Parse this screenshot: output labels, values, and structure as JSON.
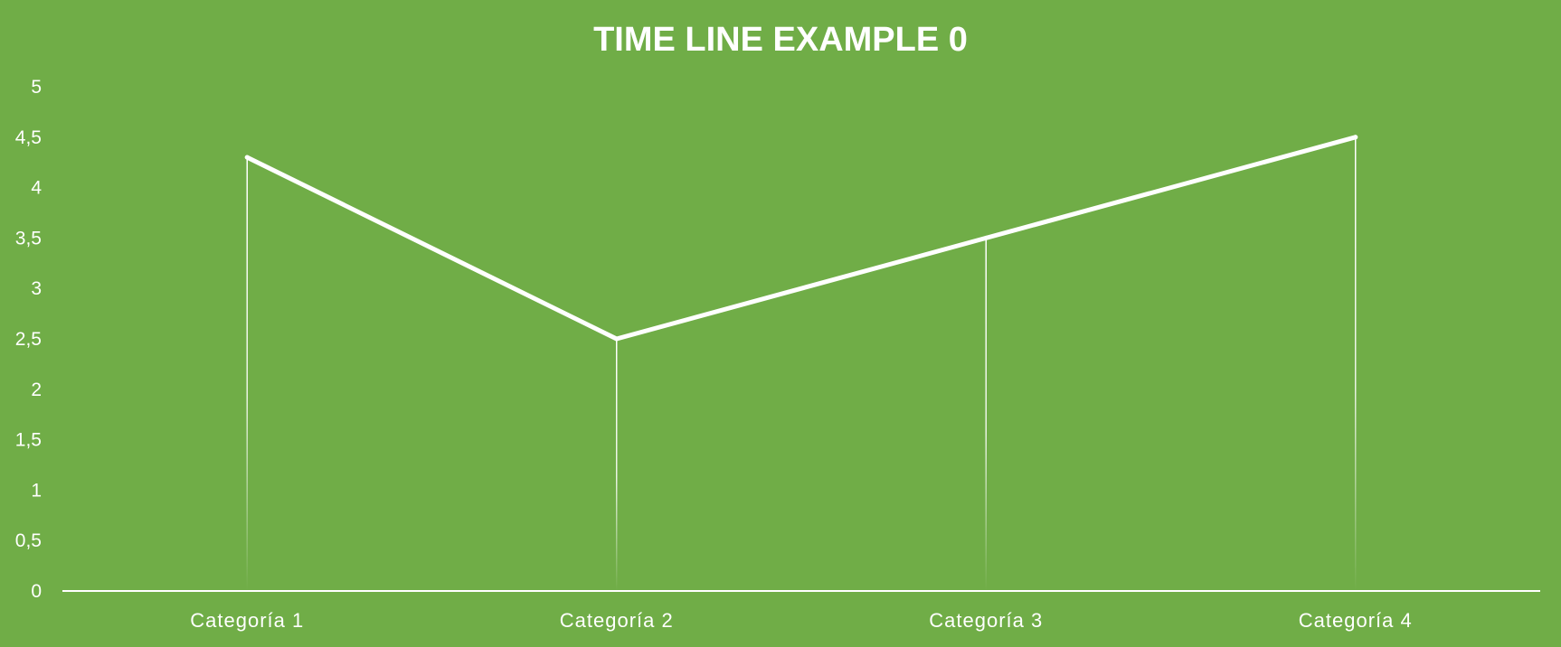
{
  "colors": {
    "background": "#70AD47",
    "foreground": "#FFFFFF"
  },
  "chart_data": {
    "type": "line",
    "title": "TIME LINE EXAMPLE 0",
    "xlabel": "",
    "ylabel": "",
    "categories": [
      "Categoría 1",
      "Categoría 2",
      "Categoría 3",
      "Categoría 4"
    ],
    "series": [
      {
        "values": [
          4.3,
          2.5,
          3.5,
          4.5
        ]
      }
    ],
    "ylim": [
      0,
      5
    ],
    "yticks": [
      "0",
      "0,5",
      "1",
      "1,5",
      "2",
      "2,5",
      "3",
      "3,5",
      "4",
      "4,5",
      "5"
    ],
    "drop_lines": true,
    "grid": false,
    "legend": "none"
  }
}
